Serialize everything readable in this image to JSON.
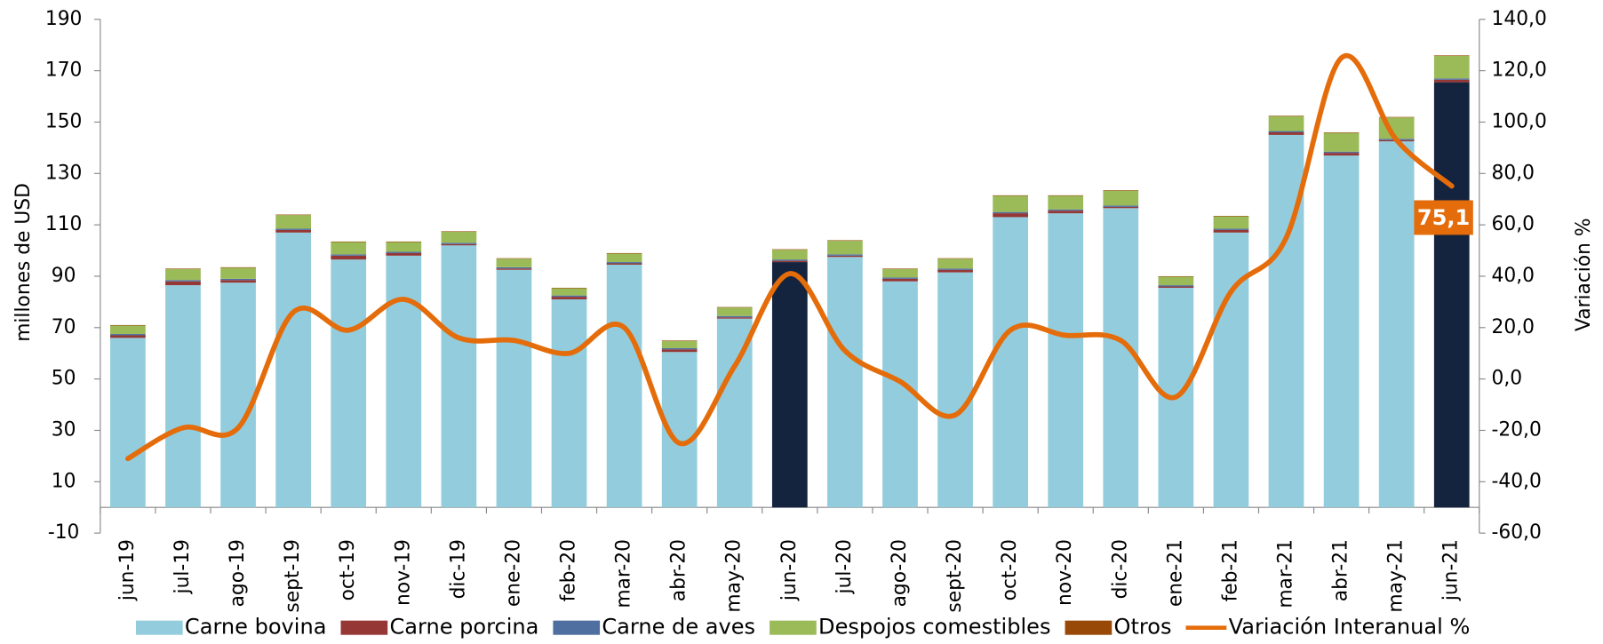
{
  "chart_data": {
    "type": "bar",
    "stacked": true,
    "categories": [
      "jun-19",
      "jul-19",
      "ago-19",
      "sept-19",
      "oct-19",
      "nov-19",
      "dic-19",
      "ene-20",
      "feb-20",
      "mar-20",
      "abr-20",
      "may-20",
      "jun-20",
      "jul-20",
      "ago-20",
      "sept-20",
      "oct-20",
      "nov-20",
      "dic-20",
      "ene-21",
      "feb-21",
      "mar-21",
      "abr-21",
      "may-21",
      "jun-21"
    ],
    "series": [
      {
        "name": "Carne bovina",
        "color": "#93cddd",
        "colors": [
          "#93cddd",
          "#93cddd",
          "#93cddd",
          "#93cddd",
          "#93cddd",
          "#93cddd",
          "#93cddd",
          "#93cddd",
          "#93cddd",
          "#93cddd",
          "#93cddd",
          "#93cddd",
          "#14243f",
          "#93cddd",
          "#93cddd",
          "#93cddd",
          "#93cddd",
          "#93cddd",
          "#93cddd",
          "#93cddd",
          "#93cddd",
          "#93cddd",
          "#93cddd",
          "#93cddd",
          "#14243f"
        ],
        "values": [
          66,
          86.5,
          87.5,
          107,
          96.5,
          98,
          102,
          92.5,
          81,
          94.5,
          60.5,
          73.5,
          95.5,
          97.5,
          88,
          91.5,
          113,
          114.5,
          116.5,
          85.5,
          107,
          145,
          137,
          142.5,
          165.5
        ]
      },
      {
        "name": "Carne porcina",
        "color": "#953735",
        "values": [
          1,
          1.5,
          1,
          1,
          1.5,
          1,
          0.5,
          0.5,
          1,
          0.5,
          1,
          0.5,
          0.5,
          0.5,
          1,
          1,
          1.5,
          1,
          0.5,
          0.5,
          1,
          1,
          1,
          0.5,
          1
        ]
      },
      {
        "name": "Carne de aves",
        "color": "#4f6fa0",
        "values": [
          0.5,
          0.5,
          0.5,
          0.5,
          0.5,
          0.5,
          0.5,
          0.5,
          0.5,
          0.5,
          0.5,
          0.5,
          0.5,
          0.5,
          0.5,
          0.5,
          0.5,
          0.5,
          0.5,
          0.5,
          0.5,
          0.5,
          0.5,
          0.5,
          0.5
        ]
      },
      {
        "name": "Despojos comestibles",
        "color": "#9bbb59",
        "values": [
          3.3,
          4.3,
          4.3,
          5.3,
          4.8,
          3.8,
          4.3,
          3.3,
          2.8,
          3.3,
          2.8,
          3.3,
          3.8,
          5.3,
          3.3,
          3.8,
          6.3,
          5.3,
          5.8,
          3.3,
          4.8,
          5.8,
          7.3,
          8.3,
          8.8
        ]
      },
      {
        "name": "Otros",
        "color": "#984807",
        "values": [
          0.2,
          0.2,
          0.2,
          0.2,
          0.2,
          0.2,
          0.2,
          0.2,
          0.2,
          0.2,
          0.2,
          0.2,
          0.2,
          0.2,
          0.2,
          0.2,
          0.2,
          0.2,
          0.2,
          0.2,
          0.2,
          0.2,
          0.2,
          0.2,
          0.2
        ]
      },
      {
        "name": "Variación Interanual %",
        "color": "#e46c0a",
        "type": "line",
        "axis": "y2",
        "values": [
          -31,
          -19,
          -19,
          26,
          19,
          31,
          16,
          15,
          10,
          20,
          -25,
          5,
          41,
          11,
          -1,
          -14,
          19,
          17,
          15,
          -7,
          34,
          55,
          125,
          93,
          75.1
        ],
        "value_labels": [
          null,
          null,
          null,
          null,
          null,
          null,
          null,
          null,
          null,
          null,
          null,
          null,
          null,
          null,
          null,
          null,
          null,
          null,
          null,
          null,
          null,
          null,
          null,
          null,
          "75,1"
        ]
      }
    ],
    "ylabel": "millones de  USD",
    "y2label": "Variación %",
    "ylim": [
      -10,
      190
    ],
    "yticks": [
      -10,
      10,
      30,
      50,
      70,
      90,
      110,
      130,
      150,
      170,
      190
    ],
    "y2lim": [
      -60,
      140
    ],
    "y2ticks": [
      {
        "value": -60,
        "label": "-60,0"
      },
      {
        "value": -40,
        "label": "-40,0"
      },
      {
        "value": -20,
        "label": "-20,0"
      },
      {
        "value": 0,
        "label": "0,0"
      },
      {
        "value": 20,
        "label": "20,0"
      },
      {
        "value": 40,
        "label": "40,0"
      },
      {
        "value": 60,
        "label": "60,0"
      },
      {
        "value": 80,
        "label": "80,0"
      },
      {
        "value": 100,
        "label": "100,0"
      },
      {
        "value": 120,
        "label": "120,0"
      },
      {
        "value": 140,
        "label": "140,0"
      }
    ],
    "legend": "bottom",
    "grid": false
  }
}
